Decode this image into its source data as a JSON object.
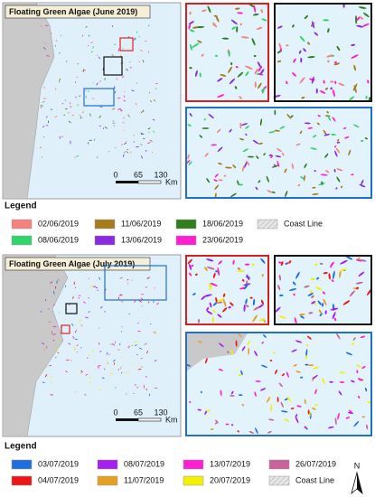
{
  "panels": [
    {
      "title": "Floating Green Algae (June 2019)",
      "scale": {
        "labels": [
          "0",
          "65",
          "130"
        ],
        "unit": "Km"
      },
      "legend": {
        "title": "Legend",
        "items": [
          {
            "label": "02/06/2019",
            "color": "#f4827e"
          },
          {
            "label": "11/06/2019",
            "color": "#a67c1a"
          },
          {
            "label": "18/06/2019",
            "color": "#2f7d1c"
          },
          {
            "label": "Coast Line",
            "color": "#d9d9d9"
          },
          {
            "label": "08/06/2019",
            "color": "#2fd46a"
          },
          {
            "label": "13/06/2019",
            "color": "#8a2be2"
          },
          {
            "label": "23/06/2019",
            "color": "#ff1fd0"
          }
        ]
      }
    },
    {
      "title": "Floating Green Algae (July 2019)",
      "scale": {
        "labels": [
          "0",
          "65",
          "130"
        ],
        "unit": "Km"
      },
      "legend": {
        "title": "Legend",
        "items": [
          {
            "label": "03/07/2019",
            "color": "#1f6fe0"
          },
          {
            "label": "08/07/2019",
            "color": "#a51ff0"
          },
          {
            "label": "13/07/2019",
            "color": "#ff1fd0"
          },
          {
            "label": "26/07/2019",
            "color": "#c8649a"
          },
          {
            "label": "04/07/2019",
            "color": "#ee1515"
          },
          {
            "label": "11/07/2019",
            "color": "#e5a024"
          },
          {
            "label": "20/07/2019",
            "color": "#f2f000"
          },
          {
            "label": "Coast Line",
            "color": "#d9d9d9"
          }
        ]
      }
    }
  ],
  "north": "N"
}
